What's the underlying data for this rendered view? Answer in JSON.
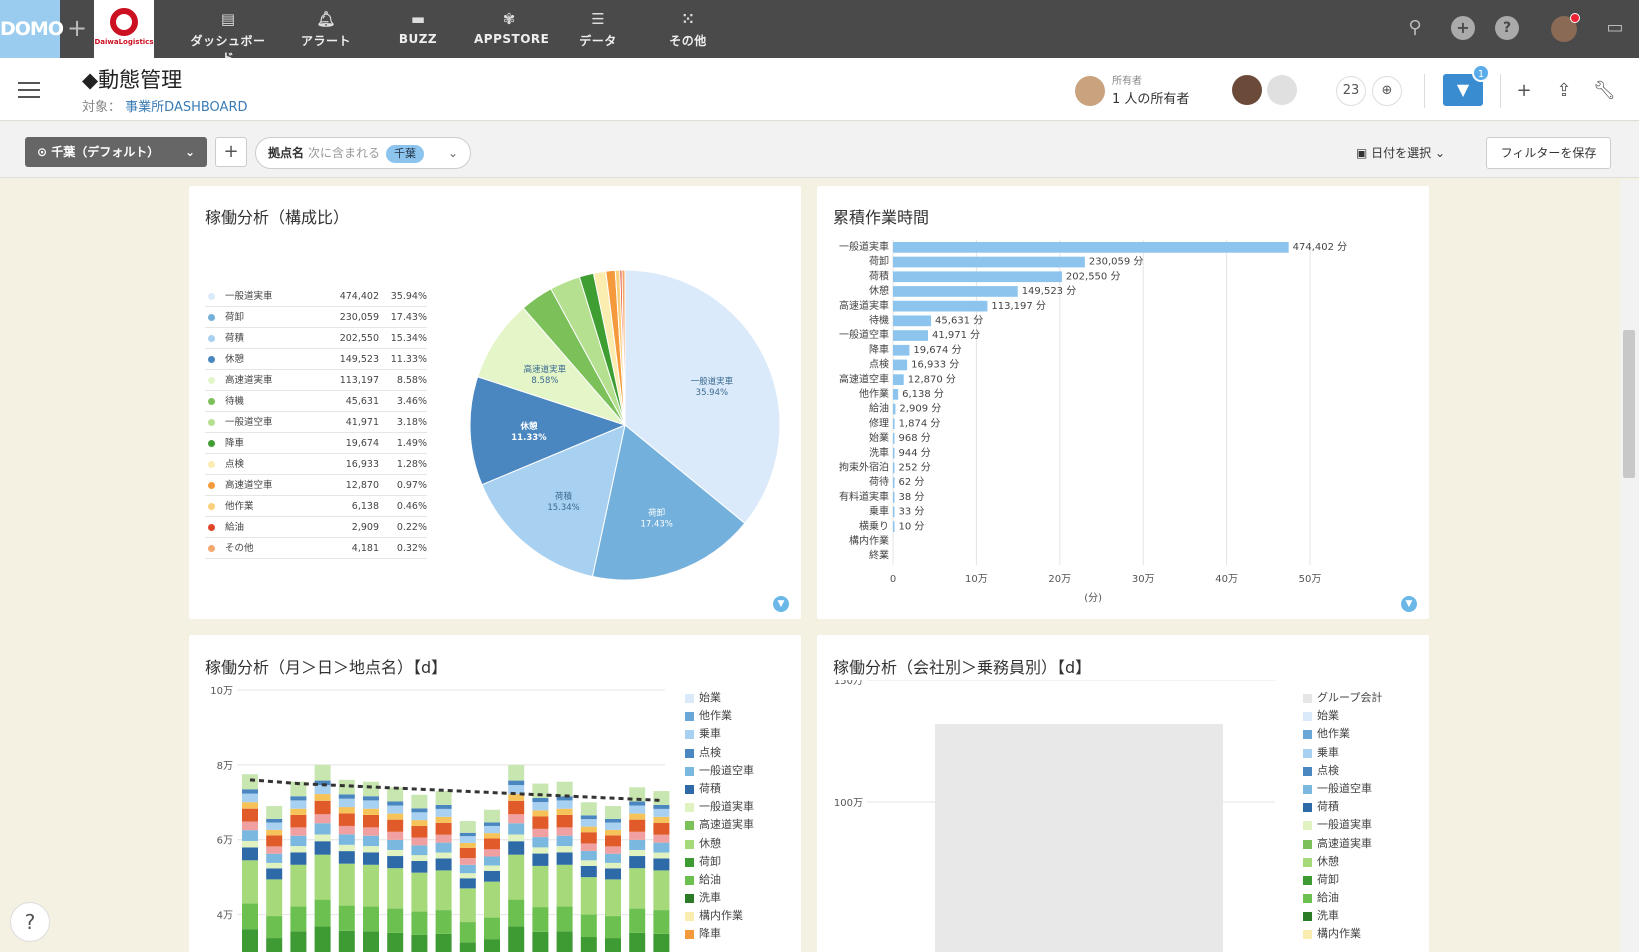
{
  "topnav": {
    "logo": "DOMO",
    "brand": "DaiwaLogistics",
    "items": [
      {
        "label": "ダッシュボード",
        "icon": "dashboard-icon"
      },
      {
        "label": "アラート",
        "icon": "bell-icon"
      },
      {
        "label": "BUZZ",
        "icon": "chat-icon"
      },
      {
        "label": "APPSTORE",
        "icon": "appstore-icon"
      },
      {
        "label": "データ",
        "icon": "database-icon"
      },
      {
        "label": "その他",
        "icon": "grid-icon"
      }
    ]
  },
  "page": {
    "title": "◆動態管理",
    "subtitle_prefix": "対象：",
    "subtitle_link": "事業所DASHBOARD",
    "owner_label": "所有者",
    "owner_text": "1 人の所有者",
    "member_count": "23",
    "filter_badge": "1"
  },
  "filterbar": {
    "page_filter": "千葉（デフォルト）",
    "pill_name": "拠点名",
    "pill_op": "次に含まれる",
    "pill_value": "千葉",
    "date_select": "日付を選択",
    "save_filter": "フィルターを保存"
  },
  "cards": {
    "pie_title": "稼働分析（構成比）",
    "bar_title": "累積作業時間",
    "stack_title": "稼働分析（月＞日＞地点名）【d】",
    "company_title": "稼働分析（会社別＞乗務員別）【d】"
  },
  "colors": {
    "accent": "#3a8cd0",
    "nav_bg": "#4a4a4a",
    "bar": "#8cc4ee"
  },
  "pie_legend": [
    {
      "label": "一般道実車",
      "value": "474,402",
      "pct": "35.94%",
      "color": "#dbeafa"
    },
    {
      "label": "荷卸",
      "value": "230,059",
      "pct": "17.43%",
      "color": "#73b0dc"
    },
    {
      "label": "荷積",
      "value": "202,550",
      "pct": "15.34%",
      "color": "#a8d0f0"
    },
    {
      "label": "休憩",
      "value": "149,523",
      "pct": "11.33%",
      "color": "#4a86c0"
    },
    {
      "label": "高速道実車",
      "value": "113,197",
      "pct": "8.58%",
      "color": "#e4f5c8"
    },
    {
      "label": "待機",
      "value": "45,631",
      "pct": "3.46%",
      "color": "#7cc05a"
    },
    {
      "label": "一般道空車",
      "value": "41,971",
      "pct": "3.18%",
      "color": "#b5e08f"
    },
    {
      "label": "降車",
      "value": "19,674",
      "pct": "1.49%",
      "color": "#3f9e32"
    },
    {
      "label": "点検",
      "value": "16,933",
      "pct": "1.28%",
      "color": "#fbecb0"
    },
    {
      "label": "高速道空車",
      "value": "12,870",
      "pct": "0.97%",
      "color": "#f59a3c"
    },
    {
      "label": "他作業",
      "value": "6,138",
      "pct": "0.46%",
      "color": "#fad07c"
    },
    {
      "label": "給油",
      "value": "2,909",
      "pct": "0.22%",
      "color": "#e0452a"
    },
    {
      "label": "その他",
      "value": "4,181",
      "pct": "0.32%",
      "color": "#f5a86e"
    }
  ],
  "chart_data": [
    {
      "type": "pie",
      "title": "稼働分析（構成比）",
      "slices": [
        {
          "label": "一般道実車",
          "value": 474402,
          "pct": "35.94%"
        },
        {
          "label": "荷卸",
          "value": 230059,
          "pct": "17.43%"
        },
        {
          "label": "荷積",
          "value": 202550,
          "pct": "15.34%"
        },
        {
          "label": "休憩",
          "value": 149523,
          "pct": "11.33%"
        },
        {
          "label": "高速道実車",
          "value": 113197,
          "pct": "8.58%"
        },
        {
          "label": "待機",
          "value": 45631
        },
        {
          "label": "一般道空車",
          "value": 41971
        },
        {
          "label": "降車",
          "value": 19674
        },
        {
          "label": "点検",
          "value": 16933
        },
        {
          "label": "高速道空車",
          "value": 12870
        },
        {
          "label": "他作業",
          "value": 6138
        },
        {
          "label": "給油",
          "value": 2909
        },
        {
          "label": "その他",
          "value": 4181
        }
      ]
    },
    {
      "type": "bar",
      "title": "累積作業時間",
      "orientation": "horizontal",
      "categories": [
        "一般道実車",
        "荷卸",
        "荷積",
        "休憩",
        "高速道実車",
        "待機",
        "一般道空車",
        "降車",
        "点検",
        "高速道空車",
        "他作業",
        "給油",
        "修理",
        "始業",
        "洗車",
        "拘束外宿泊",
        "荷待",
        "有料道実車",
        "乗車",
        "横乗り",
        "構内作業",
        "終業"
      ],
      "values": [
        474402,
        230059,
        202550,
        149523,
        113197,
        45631,
        41971,
        19674,
        16933,
        12870,
        6138,
        2909,
        1874,
        968,
        944,
        252,
        62,
        38,
        33,
        10,
        0,
        0
      ],
      "value_labels": [
        "474,402 分",
        "230,059 分",
        "202,550 分",
        "149,523 分",
        "113,197 分",
        "45,631 分",
        "41,971 分",
        "19,674 分",
        "16,933 分",
        "12,870 分",
        "6,138 分",
        "2,909 分",
        "1,874 分",
        "968 分",
        "944 分",
        "252 分",
        "62 分",
        "38 分",
        "33 分",
        "10 分",
        "",
        ""
      ],
      "xticks": [
        "0",
        "10万",
        "20万",
        "30万",
        "40万",
        "50万"
      ],
      "xlabel": "(分)",
      "xlim": [
        0,
        500000
      ],
      "grid": true
    },
    {
      "type": "bar",
      "stacked": true,
      "title": "稼働分析（月＞日＞地点名）【d】",
      "yticks": [
        "4万",
        "6万",
        "8万",
        "10万"
      ],
      "ylim": [
        30000,
        100000
      ],
      "totals": [
        77500,
        69000,
        75500,
        80000,
        76000,
        75500,
        74000,
        72000,
        73000,
        65000,
        68000,
        80000,
        75000,
        75500,
        70000,
        69000,
        74000,
        73000
      ],
      "trend": [
        76000,
        75500,
        75000,
        74700,
        74400,
        74100,
        73800,
        73500,
        73200,
        72900,
        72600,
        72300,
        72000,
        71700,
        71400,
        71100,
        70800,
        70500
      ],
      "legend": [
        "始業",
        "他作業",
        "乗車",
        "点検",
        "一般道空車",
        "荷積",
        "一般道実車",
        "高速道実車",
        "休憩",
        "荷卸",
        "給油",
        "洗車",
        "構内作業",
        "降車"
      ]
    },
    {
      "type": "bar",
      "stacked": true,
      "title": "稼働分析（会社別＞乗務員別）【d】",
      "yticks": [
        "100万",
        "150万"
      ],
      "legend": [
        "グループ会計",
        "始業",
        "他作業",
        "乗車",
        "点検",
        "一般道空車",
        "荷積",
        "一般道実車",
        "高速道実車",
        "休憩",
        "荷卸",
        "給油",
        "洗車",
        "構内作業"
      ]
    }
  ]
}
